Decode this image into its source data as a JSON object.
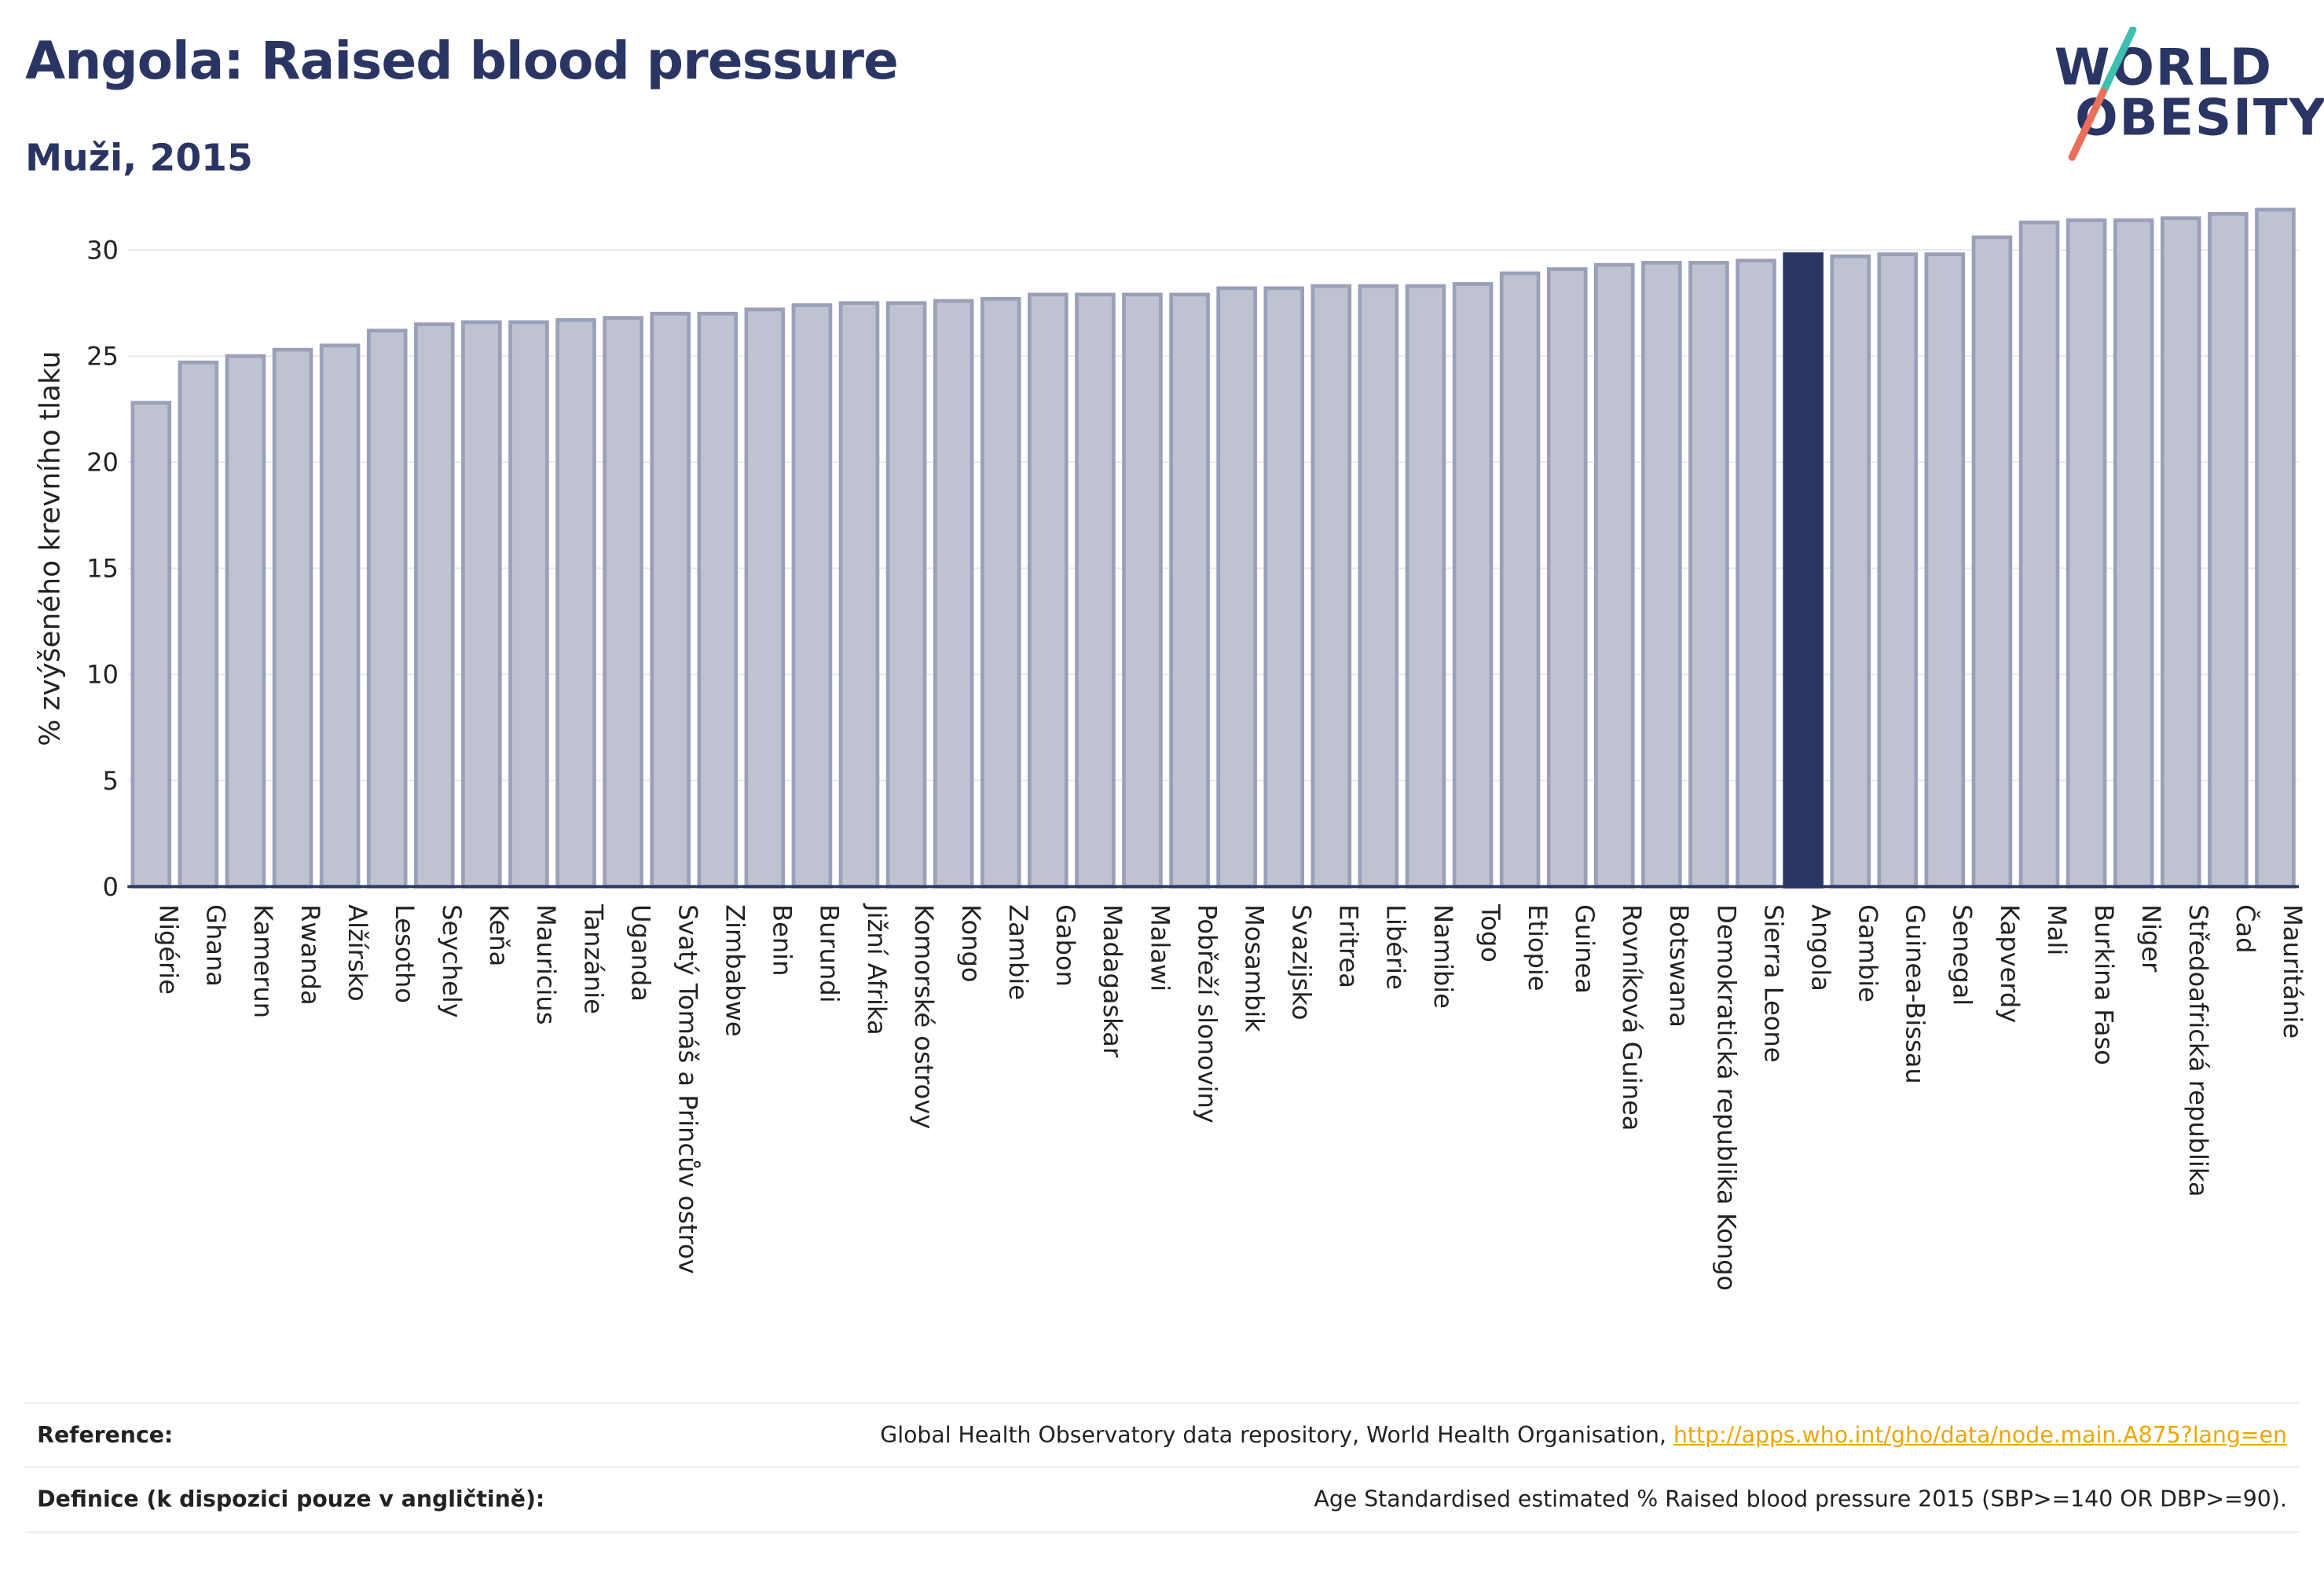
{
  "header": {
    "title": "Angola: Raised blood pressure",
    "subtitle": "Muži, 2015"
  },
  "logo": {
    "line1": "WORLD",
    "line2": "OBESITY",
    "slash_colors": [
      "#3ebfb0",
      "#e8705a"
    ]
  },
  "colors": {
    "bar": "#bfc3d1",
    "bar_border": "#9aa0b8",
    "highlight": "#2a3563",
    "grid": "#e6e8ef",
    "axis": "#2a3563",
    "link": "#f0a500"
  },
  "chart_data": {
    "type": "bar",
    "ylabel": "% zvýšeného krevního tlaku",
    "ylim": [
      0,
      32
    ],
    "yticks": [
      0,
      5,
      10,
      15,
      20,
      25,
      30
    ],
    "highlight": "Angola",
    "categories": [
      "Nigérie",
      "Ghana",
      "Kamerun",
      "Rwanda",
      "Alžírsko",
      "Lesotho",
      "Seychely",
      "Keňa",
      "Mauricius",
      "Tanzánie",
      "Uganda",
      "Svatý Tomáš a Princův ostrov",
      "Zimbabwe",
      "Benin",
      "Burundi",
      "Jižní Afrika",
      "Komorské ostrovy",
      "Kongo",
      "Zambie",
      "Gabon",
      "Madagaskar",
      "Malawi",
      "Pobřeží slonoviny",
      "Mosambik",
      "Svazijsko",
      "Eritrea",
      "Libérie",
      "Namibie",
      "Togo",
      "Etiopie",
      "Guinea",
      "Rovníková Guinea",
      "Botswana",
      "Demokratická republika Kongo",
      "Sierra Leone",
      "Angola",
      "Gambie",
      "Guinea-Bissau",
      "Senegal",
      "Kapverdy",
      "Mali",
      "Burkina Faso",
      "Niger",
      "Středoafrická republika",
      "Čad",
      "Mauritánie"
    ],
    "values": [
      22.8,
      24.7,
      25.0,
      25.3,
      25.5,
      26.2,
      26.5,
      26.6,
      26.6,
      26.7,
      26.8,
      27.0,
      27.0,
      27.2,
      27.4,
      27.5,
      27.5,
      27.6,
      27.7,
      27.9,
      27.9,
      27.9,
      27.9,
      28.2,
      28.2,
      28.3,
      28.3,
      28.3,
      28.4,
      28.9,
      29.1,
      29.3,
      29.4,
      29.4,
      29.5,
      29.8,
      29.7,
      29.8,
      29.8,
      30.6,
      31.3,
      31.4,
      31.4,
      31.5,
      31.7,
      31.9
    ]
  },
  "footer": {
    "reference_label": "Reference:",
    "reference_text": "Global Health Observatory data repository, World Health Organisation, ",
    "reference_link": "http://apps.who.int/gho/data/node.main.A875?lang=en",
    "definition_label": "Definice (k dispozici pouze v angličtině):",
    "definition_text": "Age Standardised estimated % Raised blood pressure 2015 (SBP>=140 OR DBP>=90)."
  }
}
